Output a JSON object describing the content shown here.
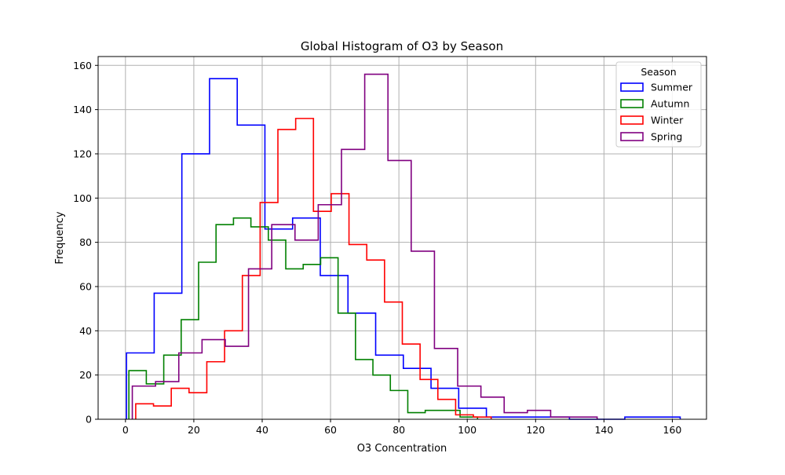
{
  "chart_data": {
    "type": "histogram",
    "title": "Global Histogram of O3 by Season",
    "xlabel": "O3 Concentration",
    "ylabel": "Frequency",
    "xlim": [
      -8,
      170
    ],
    "ylim": [
      0,
      164
    ],
    "x_ticks": [
      0,
      20,
      40,
      60,
      80,
      100,
      120,
      140,
      160
    ],
    "y_ticks": [
      0,
      20,
      40,
      60,
      80,
      100,
      120,
      140,
      160
    ],
    "grid": true,
    "legend": {
      "title": "Season",
      "position": "top-right"
    },
    "series": [
      {
        "name": "Summer",
        "color": "#0000ff",
        "edges": [
          0.3,
          8.4,
          16.5,
          24.6,
          32.7,
          40.8,
          48.9,
          57.0,
          65.1,
          73.2,
          81.3,
          89.4,
          97.5,
          105.6,
          113.7,
          121.8,
          129.9,
          138.0,
          146.1,
          154.2,
          162.3
        ],
        "counts": [
          30,
          57,
          120,
          154,
          133,
          86,
          91,
          65,
          48,
          29,
          23,
          14,
          5,
          1,
          1,
          1,
          0,
          0,
          1,
          1
        ]
      },
      {
        "name": "Autumn",
        "color": "#008000",
        "edges": [
          1.0,
          6.1,
          11.2,
          16.3,
          21.4,
          26.5,
          31.6,
          36.7,
          41.8,
          46.9,
          52.0,
          57.1,
          62.2,
          67.3,
          72.4,
          77.5,
          82.6,
          87.7,
          92.8,
          97.9,
          103.0
        ],
        "counts": [
          22,
          16,
          29,
          45,
          71,
          88,
          91,
          87,
          81,
          68,
          70,
          73,
          48,
          27,
          20,
          13,
          3,
          4,
          4,
          1
        ]
      },
      {
        "name": "Winter",
        "color": "#ff0000",
        "edges": [
          3.0,
          8.2,
          13.4,
          18.6,
          23.8,
          29.0,
          34.2,
          39.4,
          44.6,
          49.8,
          55.0,
          60.2,
          65.4,
          70.6,
          75.8,
          81.0,
          86.2,
          91.4,
          96.6,
          101.8,
          107.0
        ],
        "counts": [
          7,
          6,
          14,
          12,
          26,
          40,
          65,
          98,
          131,
          136,
          94,
          102,
          79,
          72,
          53,
          34,
          18,
          9,
          2,
          1
        ]
      },
      {
        "name": "Spring",
        "color": "#800080",
        "edges": [
          2.0,
          8.8,
          15.6,
          22.4,
          29.2,
          36.0,
          42.8,
          49.6,
          56.4,
          63.2,
          70.0,
          76.8,
          83.6,
          90.4,
          97.2,
          104.0,
          110.8,
          117.6,
          124.4,
          131.2,
          138.0
        ],
        "counts": [
          15,
          17,
          30,
          36,
          33,
          68,
          88,
          81,
          97,
          122,
          156,
          117,
          76,
          32,
          15,
          10,
          3,
          4,
          1,
          1
        ]
      }
    ]
  }
}
